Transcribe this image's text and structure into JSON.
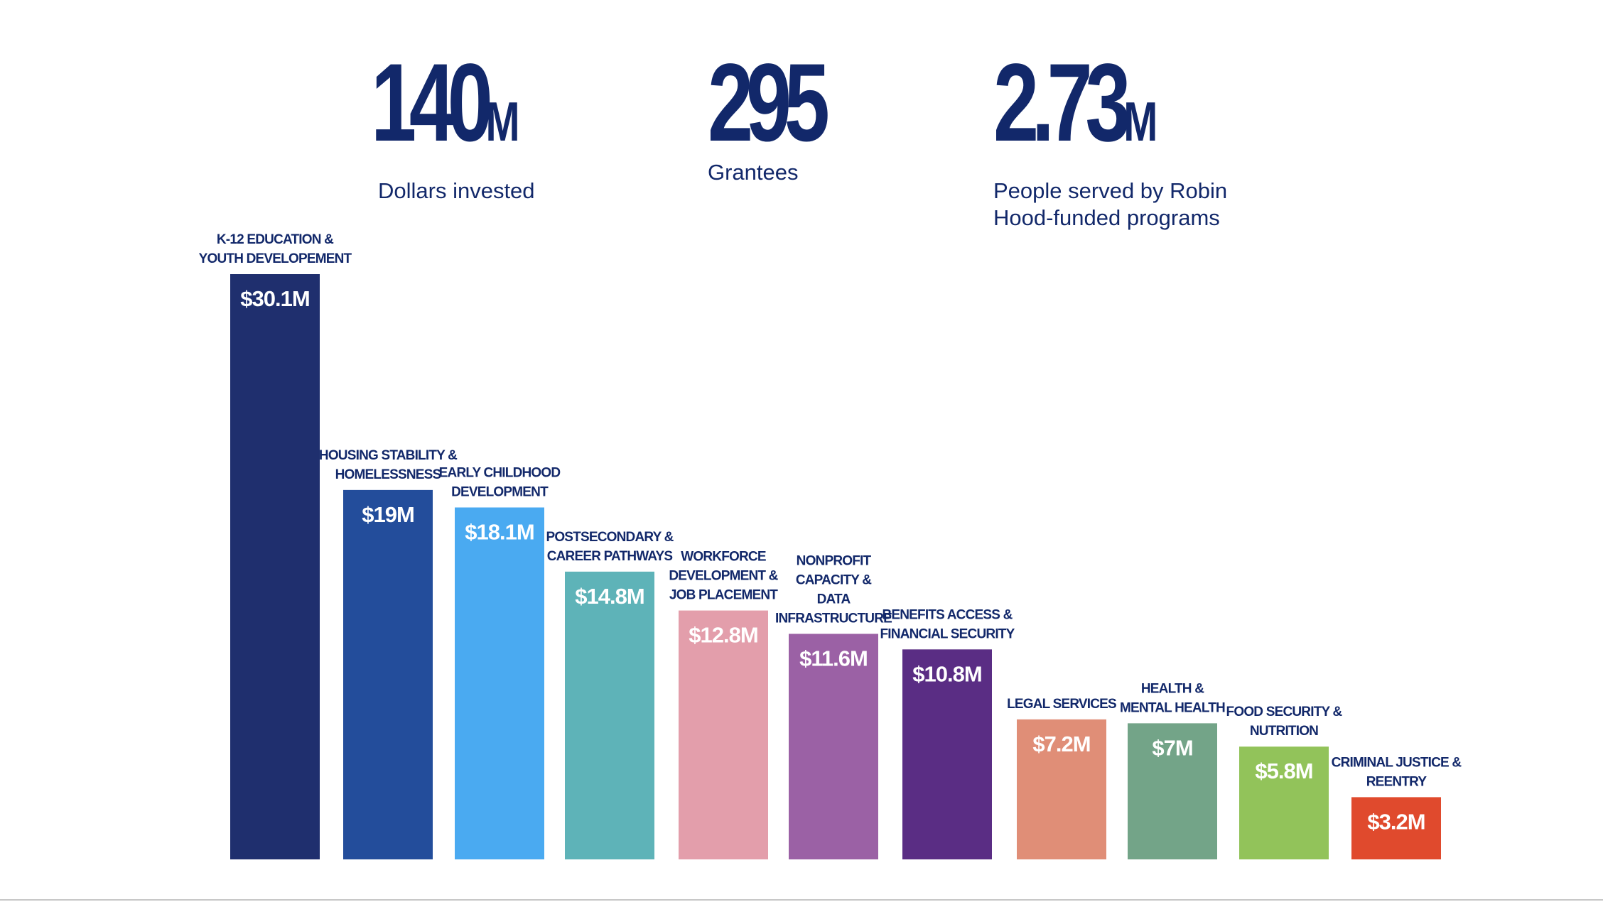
{
  "stats": {
    "dollars": {
      "value": "140",
      "unit": "M",
      "label": "Dollars invested"
    },
    "grantees": {
      "value": "295",
      "label": "Grantees"
    },
    "people": {
      "value": "2.73",
      "unit": "M",
      "label": "People served by Robin Hood-funded programs"
    }
  },
  "chart_data": {
    "type": "bar",
    "title": "",
    "xlabel": "",
    "ylabel": "",
    "ylim": [
      0,
      30.1
    ],
    "grid": false,
    "legend": "none",
    "categories": [
      [
        "K-12 EDUCATION &",
        "YOUTH DEVELOPEMENT"
      ],
      [
        "HOUSING STABILITY &",
        "HOMELESSNESS"
      ],
      [
        "EARLY CHILDHOOD",
        "DEVELOPMENT"
      ],
      [
        "POSTSECONDARY &",
        "CAREER PATHWAYS"
      ],
      [
        "WORKFORCE",
        "DEVELOPMENT &",
        "JOB PLACEMENT"
      ],
      [
        "NONPROFIT",
        "CAPACITY &",
        "DATA",
        "INFRASTRUCTURE"
      ],
      [
        "BENEFITS ACCESS &",
        "FINANCIAL SECURITY"
      ],
      [
        "LEGAL SERVICES"
      ],
      [
        "HEALTH &",
        "MENTAL HEALTH"
      ],
      [
        "FOOD SECURITY &",
        "NUTRITION"
      ],
      [
        "CRIMINAL JUSTICE &",
        "REENTRY"
      ]
    ],
    "values": [
      30.1,
      19,
      18.1,
      14.8,
      12.8,
      11.6,
      10.8,
      7.2,
      7,
      5.8,
      3.2
    ],
    "value_labels": [
      "$30.1M",
      "$19M",
      "$18.1M",
      "$14.8M",
      "$12.8M",
      "$11.6M",
      "$10.8M",
      "$7.2M",
      "$7M",
      "$5.8M",
      "$3.2M"
    ],
    "colors": [
      "#1f2f6e",
      "#234d9b",
      "#4aaaf1",
      "#5eb3b8",
      "#e39eab",
      "#9b61a5",
      "#5a2d84",
      "#e08e77",
      "#73a488",
      "#92c35a",
      "#e04a2d"
    ]
  }
}
